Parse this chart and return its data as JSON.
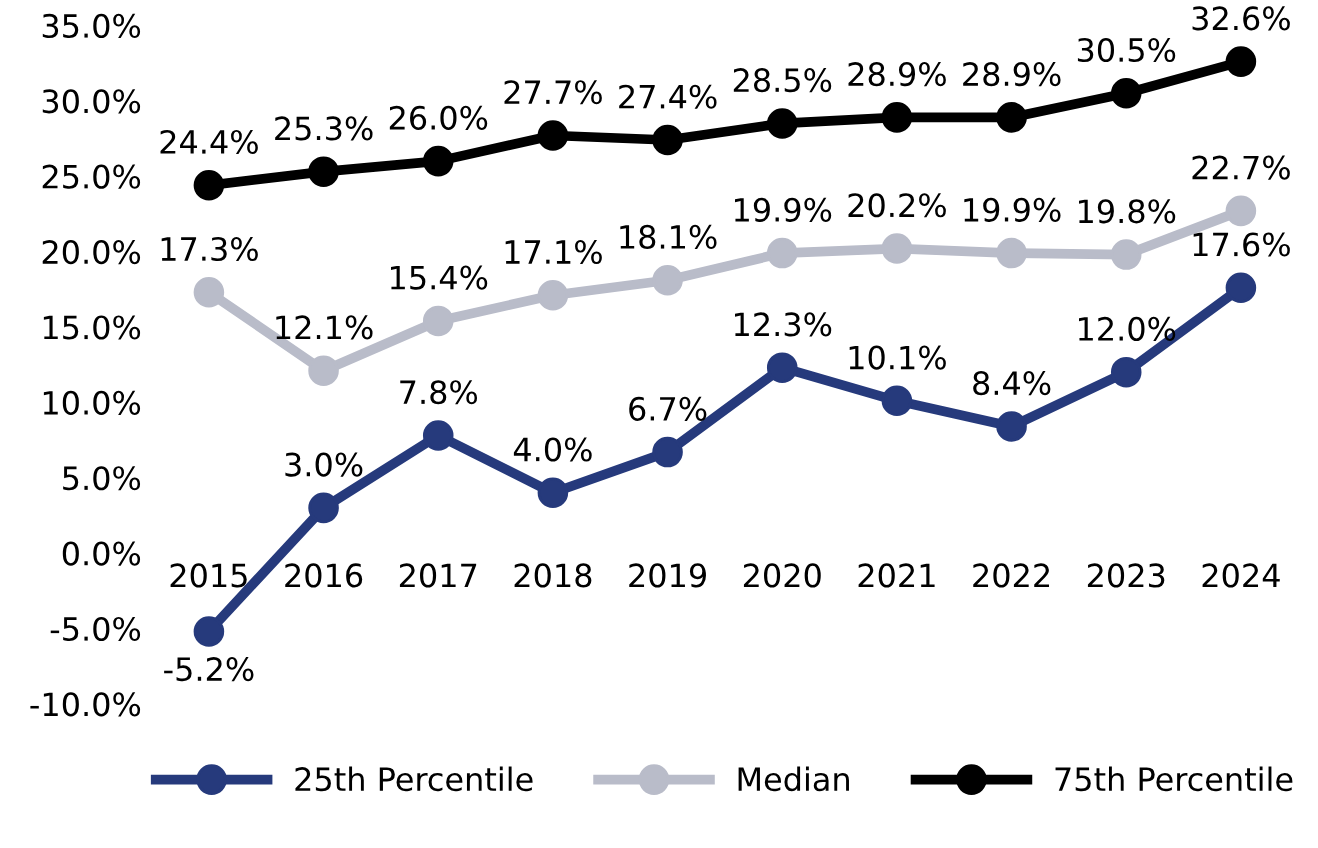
{
  "chart_data": {
    "type": "line",
    "categories": [
      "2015",
      "2016",
      "2017",
      "2018",
      "2019",
      "2020",
      "2021",
      "2022",
      "2023",
      "2024"
    ],
    "series": [
      {
        "name": "25th Percentile",
        "color": "#263a7c",
        "values": [
          -5.2,
          3.0,
          7.8,
          4.0,
          6.7,
          12.3,
          10.1,
          8.4,
          12.0,
          17.6
        ],
        "value_labels": [
          "-5.2%",
          "3.0%",
          "7.8%",
          "4.0%",
          "6.7%",
          "12.3%",
          "10.1%",
          "8.4%",
          "12.0%",
          "17.6%"
        ]
      },
      {
        "name": "Median",
        "color": "#b9bcc9",
        "values": [
          17.3,
          12.1,
          15.4,
          17.1,
          18.1,
          19.9,
          20.2,
          19.9,
          19.8,
          22.7
        ],
        "value_labels": [
          "17.3%",
          "12.1%",
          "15.4%",
          "17.1%",
          "18.1%",
          "19.9%",
          "20.2%",
          "19.9%",
          "19.8%",
          "22.7%"
        ]
      },
      {
        "name": "75th Percentile",
        "color": "#000000",
        "values": [
          24.4,
          25.3,
          26.0,
          27.7,
          27.4,
          28.5,
          28.9,
          28.9,
          30.5,
          32.6
        ],
        "value_labels": [
          "24.4%",
          "25.3%",
          "26.0%",
          "27.7%",
          "27.4%",
          "28.5%",
          "28.9%",
          "28.9%",
          "30.5%",
          "32.6%"
        ]
      }
    ],
    "ylim": [
      -10,
      35
    ],
    "yticks": [
      {
        "value": -10,
        "label": "-10.0%"
      },
      {
        "value": -5,
        "label": "-5.0%"
      },
      {
        "value": 0,
        "label": "0.0%"
      },
      {
        "value": 5,
        "label": "5.0%"
      },
      {
        "value": 10,
        "label": "10.0%"
      },
      {
        "value": 15,
        "label": "15.0%"
      },
      {
        "value": 20,
        "label": "20.0%"
      },
      {
        "value": 25,
        "label": "25.0%"
      },
      {
        "value": 30,
        "label": "30.0%"
      },
      {
        "value": 35,
        "label": "35.0%"
      }
    ],
    "marker": "circle",
    "line_style": "solid",
    "legend": "bottom",
    "grid": false
  }
}
